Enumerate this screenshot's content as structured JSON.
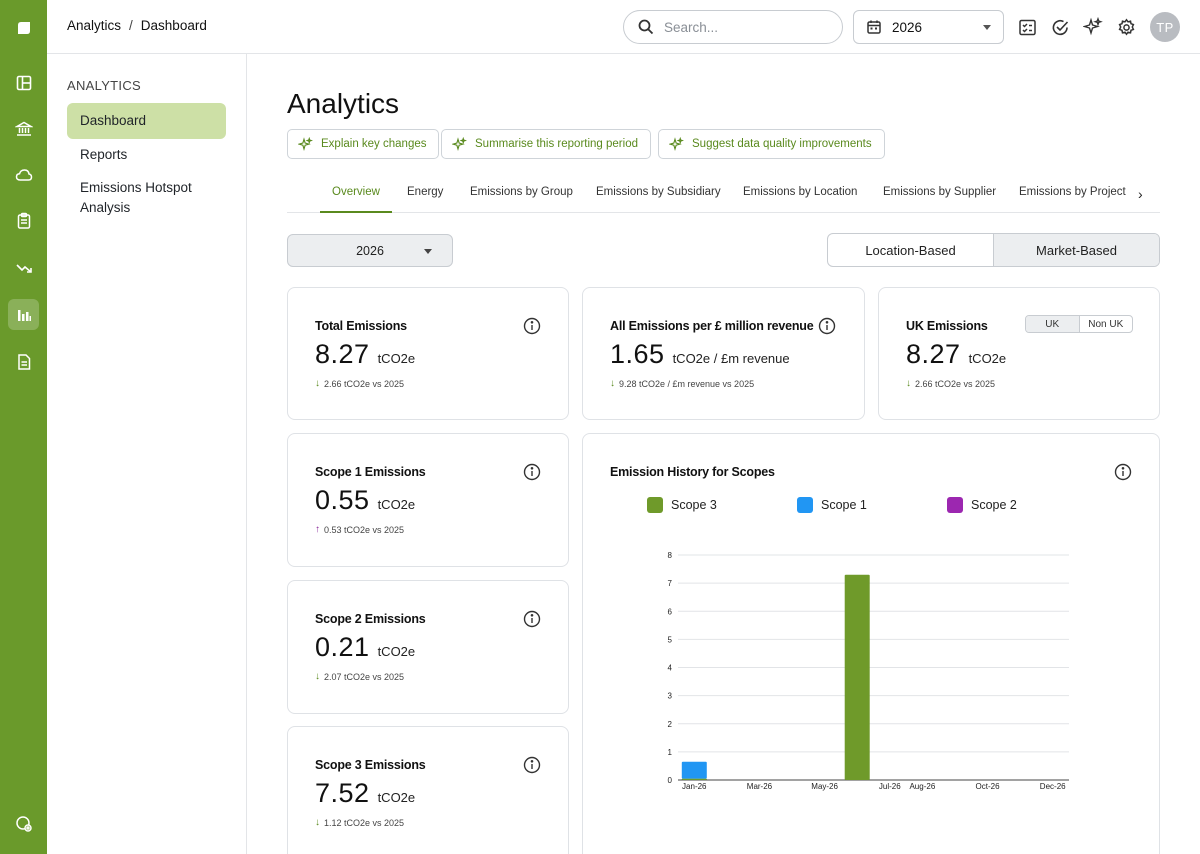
{
  "breadcrumb": {
    "root": "Analytics",
    "separator": "/",
    "current": "Dashboard"
  },
  "search": {
    "placeholder": "Search..."
  },
  "year_selector": {
    "value": "2026"
  },
  "user": {
    "initials": "TP"
  },
  "sidebar": {
    "heading": "ANALYTICS",
    "items": [
      {
        "label": "Dashboard",
        "active": true
      },
      {
        "label": "Reports",
        "active": false
      },
      {
        "label": "Emissions Hotspot Analysis",
        "active": false
      }
    ]
  },
  "page": {
    "title": "Analytics"
  },
  "ai_actions": [
    {
      "label": "Explain key changes"
    },
    {
      "label": "Summarise this reporting period"
    },
    {
      "label": "Suggest data quality improvements"
    }
  ],
  "tabs": [
    {
      "label": "Overview",
      "active": true
    },
    {
      "label": "Energy"
    },
    {
      "label": "Emissions by Group"
    },
    {
      "label": "Emissions by Subsidiary"
    },
    {
      "label": "Emissions by Location"
    },
    {
      "label": "Emissions by Supplier"
    },
    {
      "label": "Emissions by Project"
    }
  ],
  "filter": {
    "year": "2026"
  },
  "basis_toggle": {
    "options": [
      "Location-Based",
      "Market-Based"
    ],
    "selected": "Market-Based"
  },
  "cards": {
    "total": {
      "title": "Total Emissions",
      "value": "8.27",
      "unit": "tCO2e",
      "delta": "2.66 tCO2e vs 2025",
      "direction": "down"
    },
    "per_revenue": {
      "title": "All Emissions per £ million revenue",
      "value": "1.65",
      "unit": "tCO2e / £m revenue",
      "delta": "9.28 tCO2e / £m revenue vs 2025",
      "direction": "down"
    },
    "uk": {
      "title": "UK Emissions",
      "value": "8.27",
      "unit": "tCO2e",
      "delta": "2.66 tCO2e vs 2025",
      "direction": "down",
      "toggle": [
        "UK",
        "Non UK"
      ],
      "toggle_selected": "UK"
    },
    "scope1": {
      "title": "Scope 1 Emissions",
      "value": "0.55",
      "unit": "tCO2e",
      "delta": "0.53 tCO2e vs 2025",
      "direction": "up"
    },
    "scope2": {
      "title": "Scope 2 Emissions",
      "value": "0.21",
      "unit": "tCO2e",
      "delta": "2.07 tCO2e vs 2025",
      "direction": "down"
    },
    "scope3": {
      "title": "Scope 3 Emissions",
      "value": "7.52",
      "unit": "tCO2e",
      "delta": "1.12 tCO2e vs 2025",
      "direction": "down"
    }
  },
  "history": {
    "title": "Emission History for Scopes"
  },
  "colors": {
    "brand": "#6a9a2b",
    "scope3": "#6f9a2a",
    "scope1": "#2196f3",
    "scope2": "#9c27b0",
    "active_nav": "#cde0a6"
  },
  "chart_data": {
    "type": "bar",
    "stacked": true,
    "title": "Emission History for Scopes",
    "categories": [
      "Jan-26",
      "Feb-26",
      "Mar-26",
      "Apr-26",
      "May-26",
      "Jun-26",
      "Jul-26",
      "Aug-26",
      "Sep-26",
      "Oct-26",
      "Nov-26",
      "Dec-26"
    ],
    "tick_labels_shown": [
      "Jan-26",
      "Mar-26",
      "May-26",
      "Jul-26",
      "Aug-26",
      "Oct-26",
      "Dec-26"
    ],
    "series": [
      {
        "name": "Scope 3",
        "color": "#6f9a2a",
        "values": [
          0.05,
          0,
          0,
          0,
          0,
          7.3,
          0,
          0,
          0,
          0,
          0,
          0
        ]
      },
      {
        "name": "Scope 1",
        "color": "#2196f3",
        "values": [
          0.6,
          0,
          0,
          0,
          0,
          0,
          0,
          0,
          0,
          0,
          0,
          0
        ]
      },
      {
        "name": "Scope 2",
        "color": "#9c27b0",
        "values": [
          0,
          0,
          0,
          0,
          0,
          0,
          0,
          0,
          0,
          0,
          0,
          0
        ]
      }
    ],
    "ylim": [
      0,
      8
    ],
    "yticks": [
      0,
      1,
      2,
      3,
      4,
      5,
      6,
      7,
      8
    ],
    "grid": true,
    "legend": "top"
  }
}
